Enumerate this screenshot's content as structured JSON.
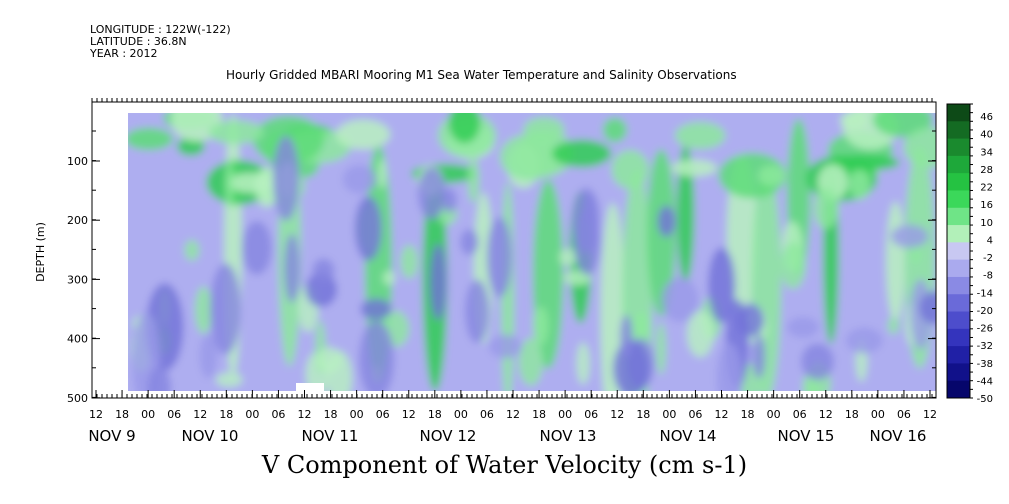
{
  "header": {
    "longitude": "LONGITUDE : 122W(-122)",
    "latitude": "LATITUDE : 36.8N",
    "year": "YEAR : 2012"
  },
  "chart_data": {
    "type": "heatmap",
    "title": "Hourly Gridded MBARI Mooring M1 Sea Water Temperature and Salinity Observations",
    "bottom_title": "V Component of Water Velocity (cm s-1)",
    "ylabel": "DEPTH (m)",
    "ylim": [
      500,
      0
    ],
    "y_ticks": [
      "100",
      "200",
      "300",
      "400",
      "500"
    ],
    "x_hour_ticks": [
      "12",
      "18",
      "00",
      "06",
      "12",
      "18",
      "00",
      "06",
      "12",
      "18",
      "00",
      "06",
      "12",
      "18",
      "00",
      "06",
      "12",
      "18",
      "00",
      "06",
      "12",
      "18",
      "00",
      "06",
      "12",
      "18",
      "00",
      "06",
      "12",
      "18",
      "00",
      "06",
      "12"
    ],
    "x_day_labels": [
      "NOV  9",
      "NOV 10",
      "NOV 11",
      "NOV 12",
      "NOV 13",
      "NOV 14",
      "NOV 15",
      "NOV 16"
    ],
    "colorbar": {
      "labels": [
        "46",
        "40",
        "34",
        "28",
        "22",
        "16",
        "10",
        "4",
        "-2",
        "-8",
        "-14",
        "-20",
        "-26",
        "-32",
        "-38",
        "-44",
        "-50"
      ],
      "levels_from_top": [
        "46",
        "40",
        "34",
        "28",
        "22",
        "16",
        "10",
        "4",
        "-2",
        "-8",
        "-14",
        "-20",
        "-26",
        "-32",
        "-38",
        "-44",
        "-50"
      ],
      "colors": [
        "#0d4a17",
        "#146b23",
        "#1a8a2e",
        "#1ea83a",
        "#25c242",
        "#3bd85a",
        "#6fe487",
        "#b2f0b9",
        "#c8c8f2",
        "#aaaaee",
        "#8a8ae4",
        "#6a6ad9",
        "#4d4dcc",
        "#3434bd",
        "#2020a6",
        "#11118a",
        "#06066b"
      ]
    },
    "panels": [
      {
        "time": "Nov 9 00",
        "pattern": "green near surface (20–130 m), blue-lavender below"
      },
      {
        "time": "Nov 10 18",
        "pattern": "blue column 150–480 m"
      },
      {
        "time": "Nov 12 06",
        "pattern": "green column through full depth"
      },
      {
        "time": "Nov 13 06",
        "pattern": "green column through full depth"
      },
      {
        "time": "Nov 14 06",
        "pattern": "green column through full depth"
      },
      {
        "time": "Nov 14 18",
        "pattern": "blue core 130–250 m"
      },
      {
        "time": "Nov 16 06",
        "pattern": "green column 250–480 m"
      }
    ]
  }
}
